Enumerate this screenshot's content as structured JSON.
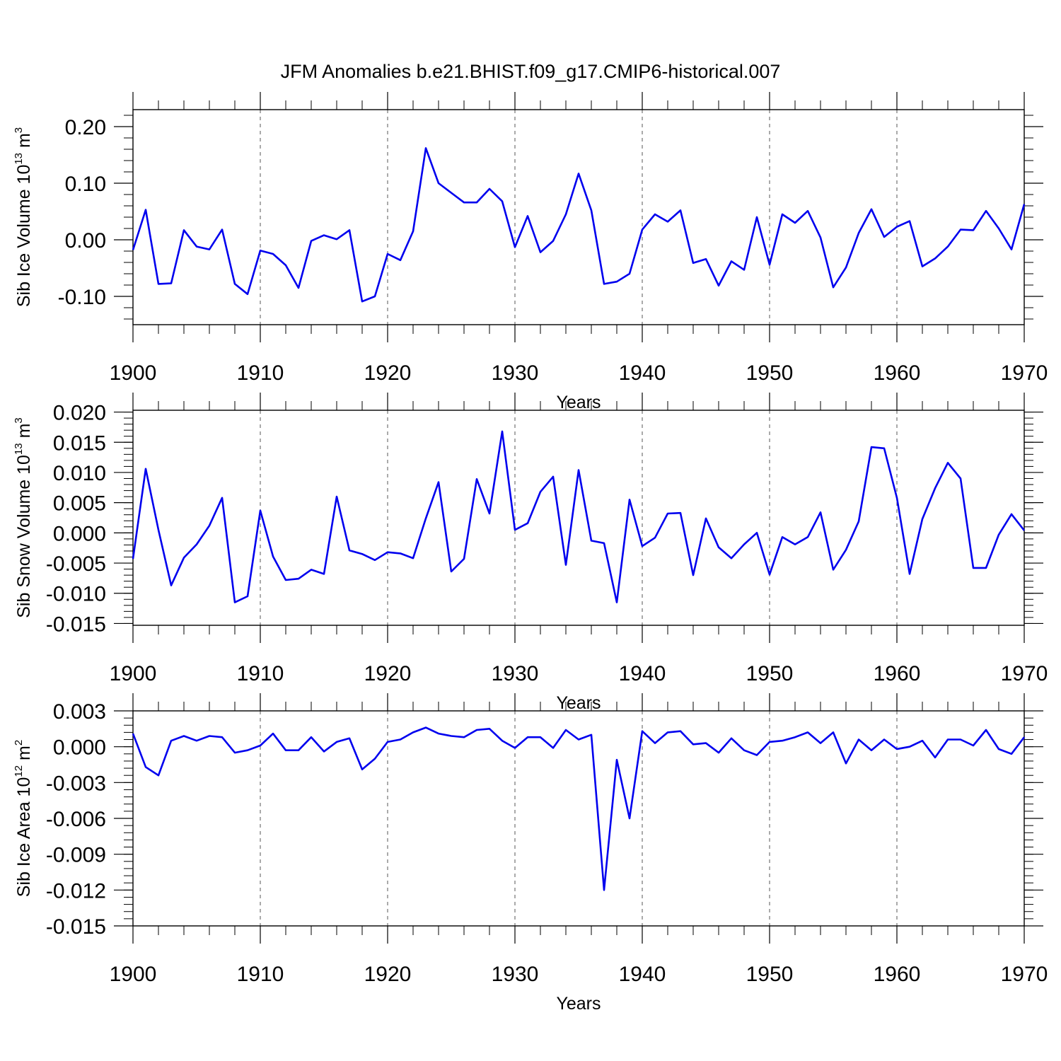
{
  "figure_title": "JFM Anomalies b.e21.BHIST.f09_g17.CMIP6-historical.007",
  "colors": {
    "line": "#0000ee",
    "axis": "#000000",
    "grid": "#555555"
  },
  "chart_data": [
    {
      "type": "line",
      "title": "JFM Anomalies b.e21.BHIST.f09_g17.CMIP6-historical.007",
      "xlabel": "Years",
      "ylabel": {
        "prefix": "Sib Ice Volume 10",
        "exp": "13",
        "unit": " m",
        "unit_exp": "3"
      },
      "xlim": [
        1900,
        1970
      ],
      "ylim": [
        -0.15,
        0.23
      ],
      "yticks": [
        0.2,
        0.1,
        0.0,
        -0.1
      ],
      "ytick_labels": [
        "0.20",
        "0.10",
        "0.00",
        "-0.10"
      ],
      "yminor_step": 0.02,
      "xticks": [
        1900,
        1910,
        1920,
        1930,
        1940,
        1950,
        1960,
        1970
      ],
      "xtick_labels": [
        "1900",
        "1910",
        "1920",
        "1930",
        "1940",
        "1950",
        "1960",
        "1970"
      ],
      "x_start": 1900,
      "series": [
        {
          "name": "Sib Ice Volume",
          "values": [
            -0.018,
            0.053,
            -0.078,
            -0.077,
            0.017,
            -0.012,
            -0.017,
            0.018,
            -0.078,
            -0.096,
            -0.019,
            -0.025,
            -0.045,
            -0.085,
            -0.002,
            0.008,
            0.001,
            0.017,
            -0.109,
            -0.1,
            -0.025,
            -0.036,
            0.015,
            0.162,
            0.1,
            0.083,
            0.066,
            0.066,
            0.09,
            0.068,
            -0.013,
            0.042,
            -0.022,
            -0.002,
            0.045,
            0.117,
            0.052,
            -0.078,
            -0.074,
            -0.06,
            0.018,
            0.045,
            0.032,
            0.052,
            -0.041,
            -0.034,
            -0.081,
            -0.038,
            -0.053,
            0.04,
            -0.044,
            0.045,
            0.03,
            0.051,
            0.004,
            -0.084,
            -0.049,
            0.012,
            0.054,
            0.005,
            0.023,
            0.033,
            -0.047,
            -0.033,
            -0.012,
            0.018,
            0.017,
            0.051,
            0.02,
            -0.017,
            0.063
          ]
        }
      ]
    },
    {
      "type": "line",
      "xlabel": "Years",
      "ylabel": {
        "prefix": "Sib Snow Volume 10",
        "exp": "13",
        "unit": " m",
        "unit_exp": "3"
      },
      "xlim": [
        1900,
        1970
      ],
      "ylim": [
        -0.0153,
        0.0203
      ],
      "yticks": [
        0.02,
        0.015,
        0.01,
        0.005,
        0.0,
        -0.005,
        -0.01,
        -0.015
      ],
      "ytick_labels": [
        "0.020",
        "0.015",
        "0.010",
        "0.005",
        "0.000",
        "-0.005",
        "-0.010",
        "-0.015"
      ],
      "yminor_step": 0.001,
      "xticks": [
        1900,
        1910,
        1920,
        1930,
        1940,
        1950,
        1960,
        1970
      ],
      "xtick_labels": [
        "1900",
        "1910",
        "1920",
        "1930",
        "1940",
        "1950",
        "1960",
        "1970"
      ],
      "x_start": 1900,
      "series": [
        {
          "name": "Sib Snow Volume",
          "values": [
            -0.0043,
            0.0106,
            0.0005,
            -0.0087,
            -0.0041,
            -0.0019,
            0.0012,
            0.0058,
            -0.0115,
            -0.0105,
            0.0037,
            -0.0039,
            -0.0078,
            -0.0076,
            -0.0061,
            -0.0068,
            0.006,
            -0.0029,
            -0.0035,
            -0.0045,
            -0.0032,
            -0.0034,
            -0.0042,
            0.0024,
            0.0084,
            -0.0064,
            -0.0043,
            0.0089,
            0.0032,
            0.0168,
            0.0005,
            0.0016,
            0.0068,
            0.0093,
            -0.0053,
            0.0104,
            -0.0013,
            -0.0017,
            -0.0115,
            0.0055,
            -0.0022,
            -0.0008,
            0.0032,
            0.0033,
            -0.007,
            0.0024,
            -0.0024,
            -0.0042,
            -0.0019,
            0.0,
            -0.0069,
            -0.0007,
            -0.0019,
            -0.0007,
            0.0034,
            -0.0061,
            -0.0028,
            0.0019,
            0.0142,
            0.014,
            0.0058,
            -0.0068,
            0.0023,
            0.0074,
            0.0116,
            0.009,
            -0.0058,
            -0.0058,
            -0.0003,
            0.0031,
            0.0004
          ]
        }
      ]
    },
    {
      "type": "line",
      "xlabel": "Years",
      "ylabel": {
        "prefix": "Sib Ice Area 10",
        "exp": "12",
        "unit": " m",
        "unit_exp": "2"
      },
      "xlim": [
        1900,
        1970
      ],
      "ylim": [
        -0.015,
        0.003
      ],
      "yticks": [
        0.003,
        0.0,
        -0.003,
        -0.006,
        -0.009,
        -0.012,
        -0.015
      ],
      "ytick_labels": [
        "0.003",
        "0.000",
        "-0.003",
        "-0.006",
        "-0.009",
        "-0.012",
        "-0.015"
      ],
      "yminor_step": 0.0006,
      "xticks": [
        1900,
        1910,
        1920,
        1930,
        1940,
        1950,
        1960,
        1970
      ],
      "xtick_labels": [
        "1900",
        "1910",
        "1920",
        "1930",
        "1940",
        "1950",
        "1960",
        "1970"
      ],
      "x_start": 1900,
      "series": [
        {
          "name": "Sib Ice Area",
          "values": [
            0.0011,
            -0.0017,
            -0.0024,
            0.0005,
            0.0009,
            0.0005,
            0.0009,
            0.0008,
            -0.0005,
            -0.0003,
            0.0001,
            0.0011,
            -0.0003,
            -0.0003,
            0.0008,
            -0.0004,
            0.0004,
            0.0007,
            -0.0019,
            -0.001,
            0.0004,
            0.0006,
            0.0012,
            0.0016,
            0.0011,
            0.0009,
            0.0008,
            0.0014,
            0.0015,
            0.0005,
            -0.0001,
            0.0008,
            0.0008,
            -0.0001,
            0.0014,
            0.0006,
            0.001,
            -0.012,
            -0.0011,
            -0.006,
            0.0013,
            0.0003,
            0.0012,
            0.0013,
            0.0002,
            0.0003,
            -0.0005,
            0.0007,
            -0.0003,
            -0.0007,
            0.0004,
            0.0005,
            0.0008,
            0.0012,
            0.0003,
            0.0012,
            -0.0014,
            0.0006,
            -0.0003,
            0.0006,
            -0.0002,
            0.0,
            0.0005,
            -0.0009,
            0.0006,
            0.0006,
            0.0001,
            0.0014,
            -0.0002,
            -0.0006,
            0.0008
          ]
        }
      ]
    }
  ]
}
